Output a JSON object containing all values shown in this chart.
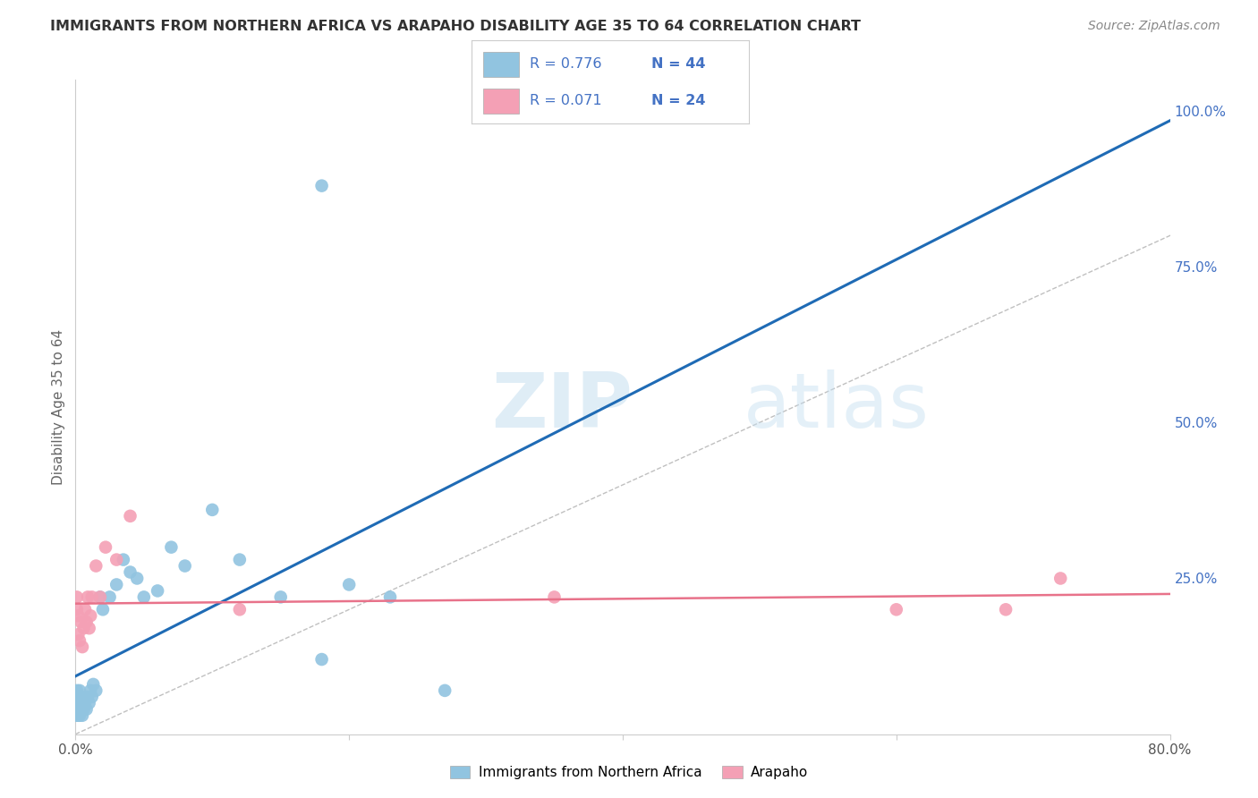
{
  "title": "IMMIGRANTS FROM NORTHERN AFRICA VS ARAPAHO DISABILITY AGE 35 TO 64 CORRELATION CHART",
  "source": "Source: ZipAtlas.com",
  "ylabel": "Disability Age 35 to 64",
  "watermark_zip": "ZIP",
  "watermark_atlas": "atlas",
  "blue_R": 0.776,
  "blue_N": 44,
  "pink_R": 0.071,
  "pink_N": 24,
  "xlim": [
    0.0,
    0.8
  ],
  "ylim": [
    0.0,
    1.05
  ],
  "blue_scatter_x": [
    0.001,
    0.001,
    0.001,
    0.001,
    0.001,
    0.002,
    0.002,
    0.002,
    0.002,
    0.003,
    0.003,
    0.003,
    0.004,
    0.004,
    0.005,
    0.005,
    0.006,
    0.007,
    0.008,
    0.009,
    0.01,
    0.011,
    0.012,
    0.013,
    0.015,
    0.018,
    0.02,
    0.025,
    0.03,
    0.035,
    0.04,
    0.045,
    0.05,
    0.06,
    0.07,
    0.08,
    0.1,
    0.12,
    0.15,
    0.18,
    0.2,
    0.23,
    0.27,
    0.18
  ],
  "blue_scatter_y": [
    0.03,
    0.04,
    0.05,
    0.06,
    0.07,
    0.03,
    0.04,
    0.05,
    0.06,
    0.03,
    0.05,
    0.07,
    0.04,
    0.06,
    0.03,
    0.05,
    0.04,
    0.05,
    0.04,
    0.06,
    0.05,
    0.07,
    0.06,
    0.08,
    0.07,
    0.22,
    0.2,
    0.22,
    0.24,
    0.28,
    0.26,
    0.25,
    0.22,
    0.23,
    0.3,
    0.27,
    0.36,
    0.28,
    0.22,
    0.12,
    0.24,
    0.22,
    0.07,
    0.88
  ],
  "pink_scatter_x": [
    0.001,
    0.001,
    0.002,
    0.002,
    0.003,
    0.004,
    0.005,
    0.006,
    0.007,
    0.008,
    0.009,
    0.01,
    0.011,
    0.012,
    0.015,
    0.018,
    0.022,
    0.03,
    0.04,
    0.12,
    0.35,
    0.6,
    0.68,
    0.72
  ],
  "pink_scatter_y": [
    0.2,
    0.22,
    0.16,
    0.19,
    0.15,
    0.18,
    0.14,
    0.17,
    0.2,
    0.18,
    0.22,
    0.17,
    0.19,
    0.22,
    0.27,
    0.22,
    0.3,
    0.28,
    0.35,
    0.2,
    0.22,
    0.2,
    0.2,
    0.25
  ],
  "background_color": "#ffffff",
  "grid_color": "#e0e0e0",
  "blue_dot_color": "#91c4e0",
  "pink_dot_color": "#f4a0b5",
  "blue_line_color": "#1f6bb5",
  "pink_line_color": "#e8728a",
  "diagonal_color": "#c0c0c0",
  "title_color": "#333333",
  "source_color": "#888888",
  "ylabel_color": "#666666",
  "right_tick_color": "#4472c4",
  "legend_color": "#4472c4",
  "bottom_legend_blue": "Immigrants from Northern Africa",
  "bottom_legend_pink": "Arapaho"
}
